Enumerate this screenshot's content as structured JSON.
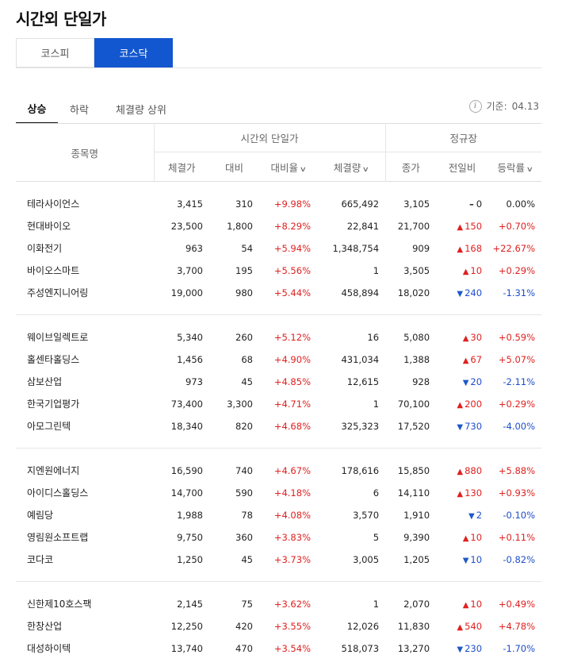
{
  "page_title": "시간외 단일가",
  "market_tabs": [
    {
      "label": "코스피",
      "active": false
    },
    {
      "label": "코스닥",
      "active": true
    }
  ],
  "sub_tabs": [
    {
      "label": "상승",
      "active": true
    },
    {
      "label": "하락",
      "active": false
    },
    {
      "label": "체결량 상위",
      "active": false
    }
  ],
  "reference": {
    "label": "기준:",
    "date": "04.13"
  },
  "headers": {
    "name": "종목명",
    "group_after_hours": "시간외 단일가",
    "group_regular": "정규장",
    "price": "체결가",
    "change": "대비",
    "change_rate": "대비율",
    "volume": "체결량",
    "close": "종가",
    "prev_change": "전일비",
    "fluct_rate": "등락률"
  },
  "groups": [
    {
      "rows": [
        {
          "name": "테라사이언스",
          "price": "3,415",
          "change": "310",
          "rate": "+9.98%",
          "volume": "665,492",
          "close": "3,105",
          "dir": "flat",
          "prev": "0",
          "fluct": "0.00%"
        },
        {
          "name": "현대바이오",
          "price": "23,500",
          "change": "1,800",
          "rate": "+8.29%",
          "volume": "22,841",
          "close": "21,700",
          "dir": "up",
          "prev": "150",
          "fluct": "+0.70%"
        },
        {
          "name": "이화전기",
          "price": "963",
          "change": "54",
          "rate": "+5.94%",
          "volume": "1,348,754",
          "close": "909",
          "dir": "up",
          "prev": "168",
          "fluct": "+22.67%"
        },
        {
          "name": "바이오스마트",
          "price": "3,700",
          "change": "195",
          "rate": "+5.56%",
          "volume": "1",
          "close": "3,505",
          "dir": "up",
          "prev": "10",
          "fluct": "+0.29%"
        },
        {
          "name": "주성엔지니어링",
          "price": "19,000",
          "change": "980",
          "rate": "+5.44%",
          "volume": "458,894",
          "close": "18,020",
          "dir": "down",
          "prev": "240",
          "fluct": "-1.31%"
        }
      ]
    },
    {
      "rows": [
        {
          "name": "웨이브일렉트로",
          "price": "5,340",
          "change": "260",
          "rate": "+5.12%",
          "volume": "16",
          "close": "5,080",
          "dir": "up",
          "prev": "30",
          "fluct": "+0.59%"
        },
        {
          "name": "홀센타홀딩스",
          "price": "1,456",
          "change": "68",
          "rate": "+4.90%",
          "volume": "431,034",
          "close": "1,388",
          "dir": "up",
          "prev": "67",
          "fluct": "+5.07%"
        },
        {
          "name": "삼보산업",
          "price": "973",
          "change": "45",
          "rate": "+4.85%",
          "volume": "12,615",
          "close": "928",
          "dir": "down",
          "prev": "20",
          "fluct": "-2.11%"
        },
        {
          "name": "한국기업평가",
          "price": "73,400",
          "change": "3,300",
          "rate": "+4.71%",
          "volume": "1",
          "close": "70,100",
          "dir": "up",
          "prev": "200",
          "fluct": "+0.29%"
        },
        {
          "name": "아모그린텍",
          "price": "18,340",
          "change": "820",
          "rate": "+4.68%",
          "volume": "325,323",
          "close": "17,520",
          "dir": "down",
          "prev": "730",
          "fluct": "-4.00%"
        }
      ]
    },
    {
      "rows": [
        {
          "name": "지엔원에너지",
          "price": "16,590",
          "change": "740",
          "rate": "+4.67%",
          "volume": "178,616",
          "close": "15,850",
          "dir": "up",
          "prev": "880",
          "fluct": "+5.88%"
        },
        {
          "name": "아이디스홀딩스",
          "price": "14,700",
          "change": "590",
          "rate": "+4.18%",
          "volume": "6",
          "close": "14,110",
          "dir": "up",
          "prev": "130",
          "fluct": "+0.93%"
        },
        {
          "name": "예림당",
          "price": "1,988",
          "change": "78",
          "rate": "+4.08%",
          "volume": "3,570",
          "close": "1,910",
          "dir": "down",
          "prev": "2",
          "fluct": "-0.10%"
        },
        {
          "name": "영림원소프트랩",
          "price": "9,750",
          "change": "360",
          "rate": "+3.83%",
          "volume": "5",
          "close": "9,390",
          "dir": "up",
          "prev": "10",
          "fluct": "+0.11%"
        },
        {
          "name": "코다코",
          "price": "1,250",
          "change": "45",
          "rate": "+3.73%",
          "volume": "3,005",
          "close": "1,205",
          "dir": "down",
          "prev": "10",
          "fluct": "-0.82%"
        }
      ]
    },
    {
      "rows": [
        {
          "name": "신한제10호스팩",
          "price": "2,145",
          "change": "75",
          "rate": "+3.62%",
          "volume": "1",
          "close": "2,070",
          "dir": "up",
          "prev": "10",
          "fluct": "+0.49%"
        },
        {
          "name": "한창산업",
          "price": "12,250",
          "change": "420",
          "rate": "+3.55%",
          "volume": "12,026",
          "close": "11,830",
          "dir": "up",
          "prev": "540",
          "fluct": "+4.78%"
        },
        {
          "name": "대성하이텍",
          "price": "13,740",
          "change": "470",
          "rate": "+3.54%",
          "volume": "518,073",
          "close": "13,270",
          "dir": "down",
          "prev": "230",
          "fluct": "-1.70%"
        }
      ]
    }
  ]
}
